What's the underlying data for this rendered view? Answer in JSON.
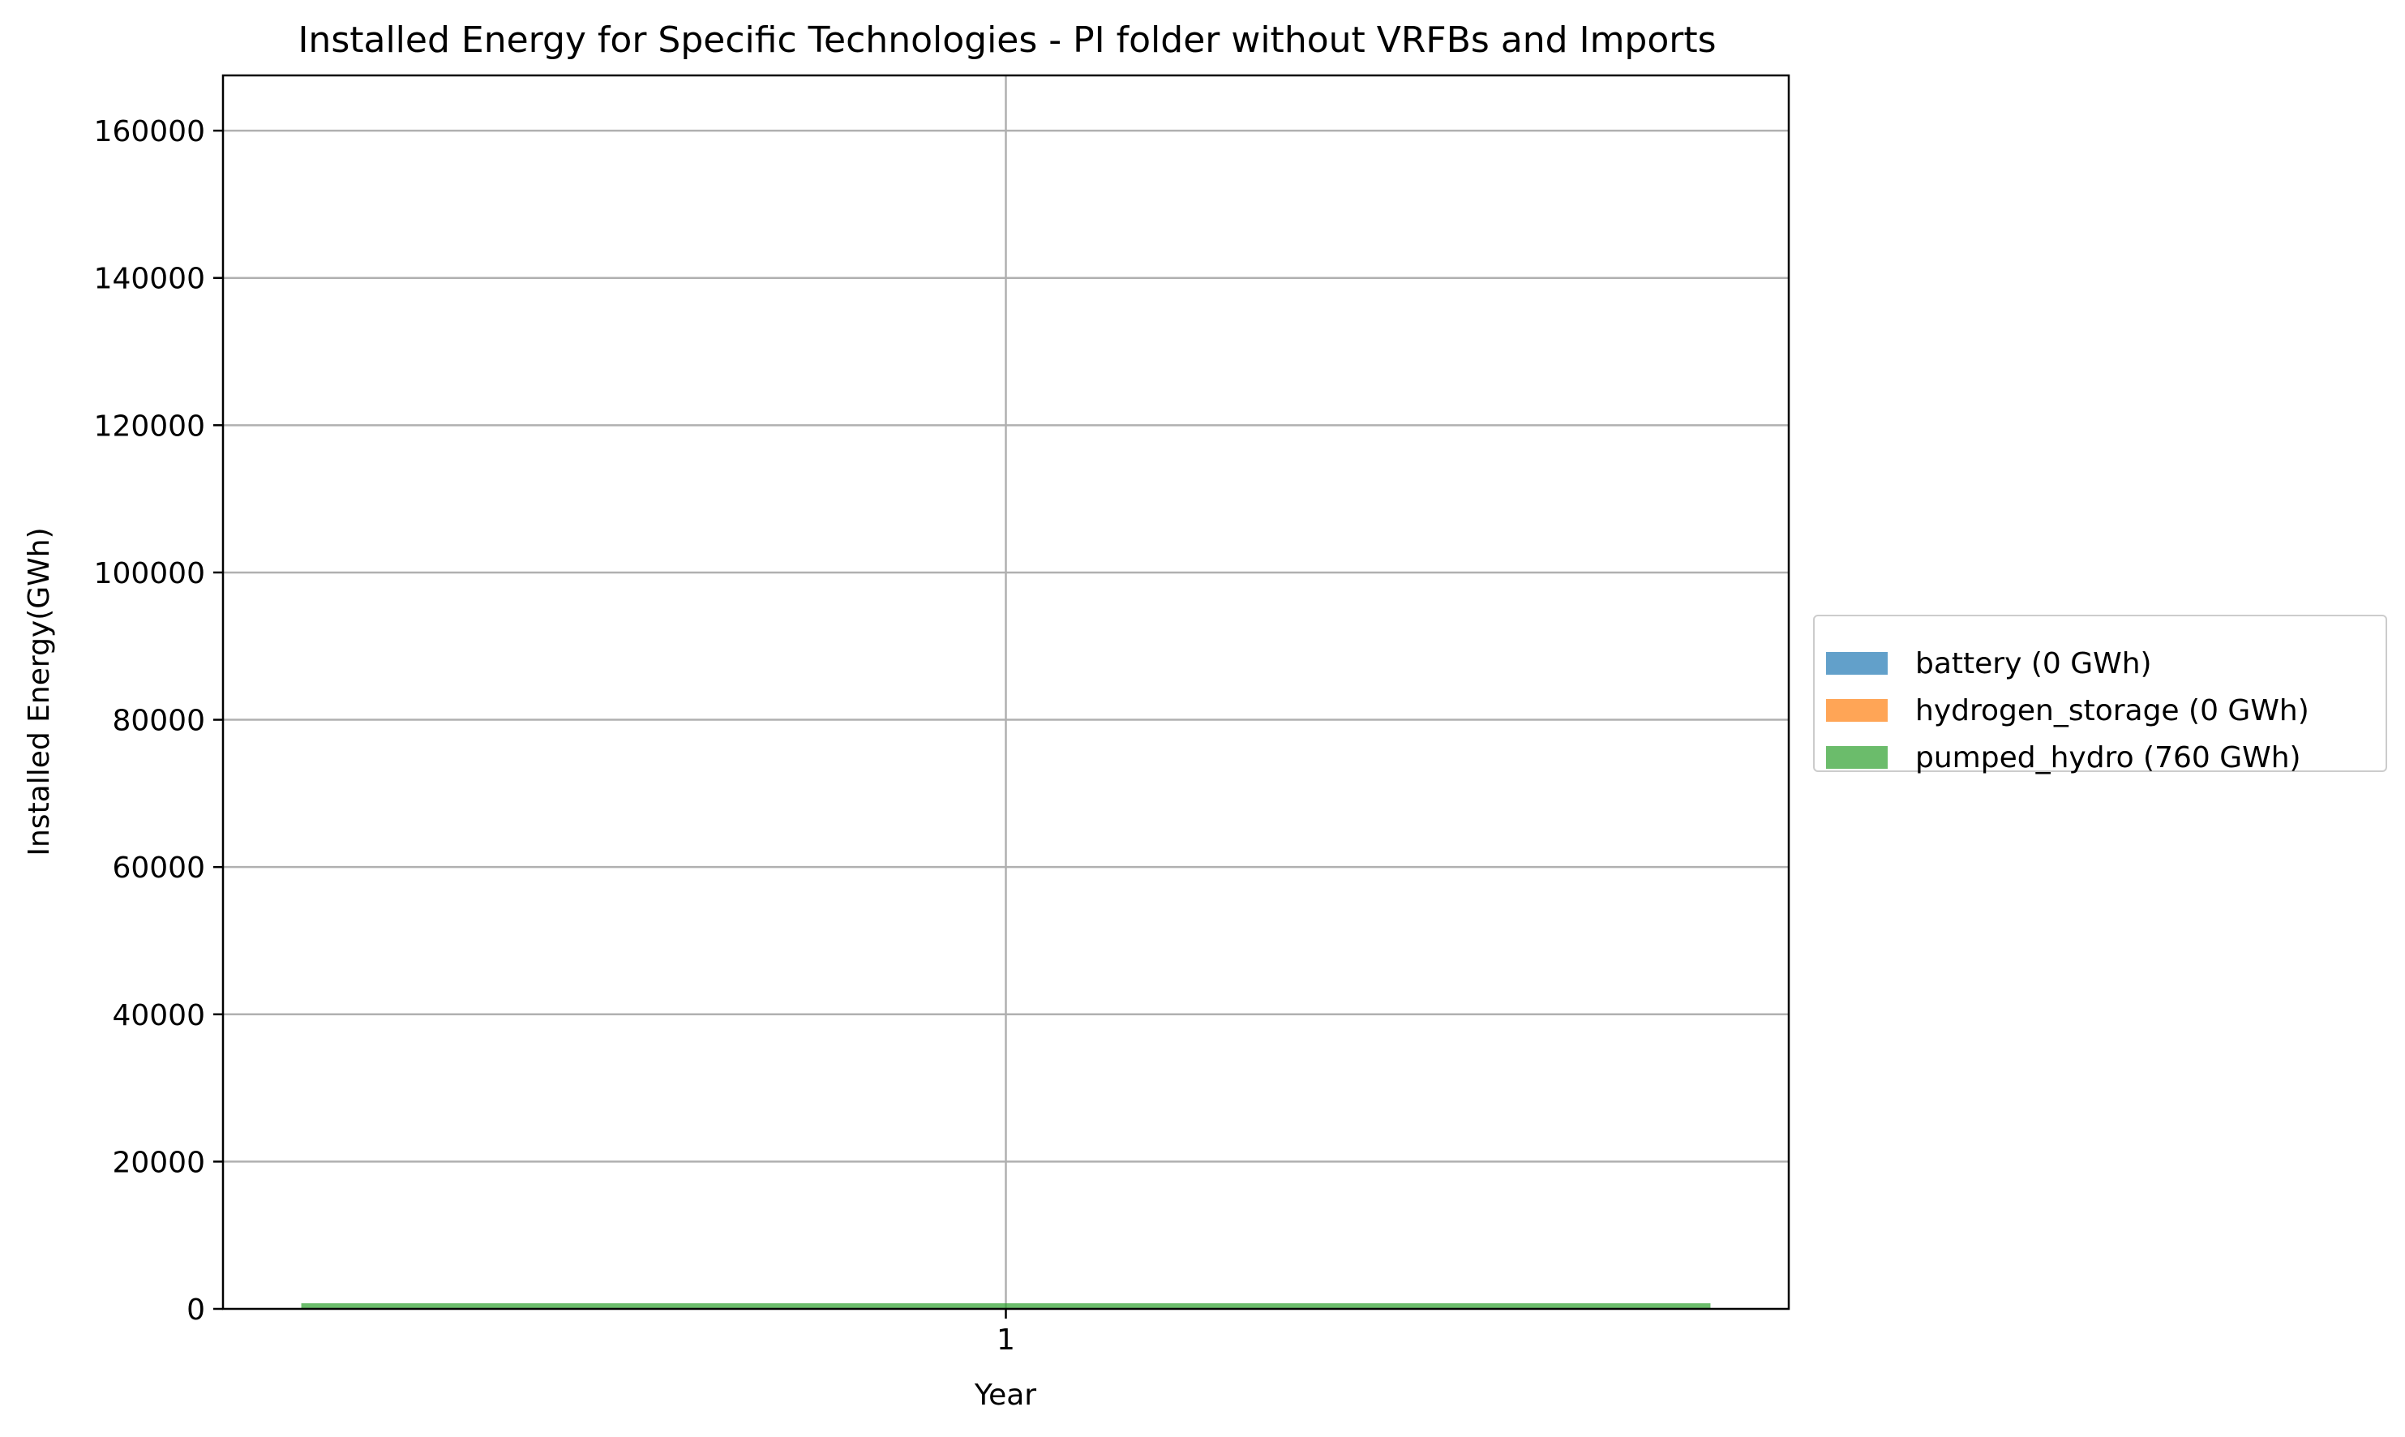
{
  "chart_data": {
    "type": "bar",
    "title": "Installed Energy for Specific Technologies - PI folder without VRFBs and Imports",
    "xlabel": "Year",
    "ylabel": "Installed Energy(GWh)",
    "categories": [
      "1"
    ],
    "ylim": [
      0,
      167500
    ],
    "yticks": [
      "0",
      "20000",
      "40000",
      "60000",
      "80000",
      "100000",
      "120000",
      "140000",
      "160000"
    ],
    "stacked": true,
    "grid": true,
    "legend_position": "right",
    "series": [
      {
        "name": "battery (0 GWh)",
        "values": [
          0
        ],
        "color": "#1f77b4"
      },
      {
        "name": "hydrogen_storage (0 GWh)",
        "values": [
          0
        ],
        "color": "#ff7f0e"
      },
      {
        "name": "pumped_hydro (760 GWh)",
        "values": [
          760
        ],
        "color": "#2ca02c"
      }
    ]
  }
}
